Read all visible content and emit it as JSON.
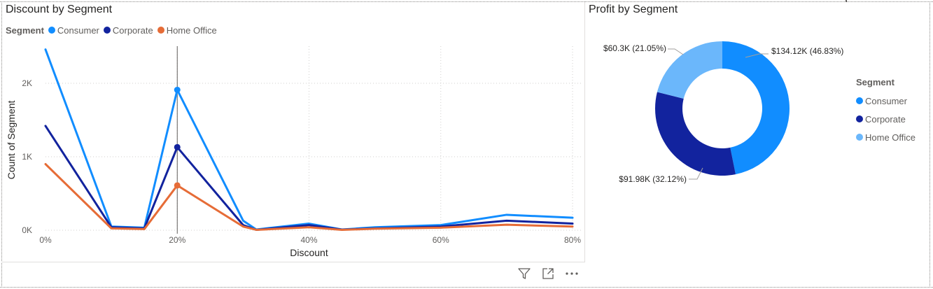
{
  "colors": {
    "consumer": "#118dff",
    "corporate": "#12239e",
    "home_office_line": "#e66c37",
    "home_office_donut": "#6bb7fb",
    "grid": "#d0cfce",
    "axis_text": "#605e5c",
    "crosshair": "#605e5c"
  },
  "toolbar": {
    "filter_icon": "filter-icon",
    "focus_icon": "focus-mode-icon",
    "more_icon": "more-options-icon"
  },
  "chart_data": [
    {
      "type": "line",
      "title": "Discount by Segment",
      "legend_title": "Segment",
      "legend_placement": "top-left",
      "xlabel": "Discount",
      "ylabel": "Count of Segment",
      "x_tick_labels": [
        "0%",
        "20%",
        "40%",
        "60%",
        "80%"
      ],
      "y_tick_labels": [
        "0K",
        "1K",
        "2K"
      ],
      "xlim": [
        0,
        0.8
      ],
      "ylim": [
        0,
        2400
      ],
      "grid": true,
      "highlight_x": 0.2,
      "x": [
        0,
        0.1,
        0.15,
        0.2,
        0.3,
        0.32,
        0.4,
        0.45,
        0.5,
        0.6,
        0.7,
        0.8
      ],
      "series": [
        {
          "name": "Consumer",
          "values": [
            2460,
            50,
            35,
            1910,
            130,
            10,
            90,
            10,
            40,
            70,
            210,
            170
          ]
        },
        {
          "name": "Corporate",
          "values": [
            1420,
            40,
            25,
            1130,
            70,
            5,
            70,
            8,
            25,
            50,
            130,
            90
          ]
        },
        {
          "name": "Home Office",
          "values": [
            900,
            25,
            15,
            610,
            50,
            5,
            40,
            5,
            20,
            35,
            75,
            50
          ]
        }
      ]
    },
    {
      "type": "pie",
      "title": "Profit by Segment",
      "legend_title": "Segment",
      "legend_placement": "right",
      "donut": true,
      "categories": [
        "Consumer",
        "Corporate",
        "Home Office"
      ],
      "values": [
        134.12,
        91.98,
        60.3
      ],
      "data_labels": [
        "$134.12K (46.83%)",
        "$91.98K (32.12%)",
        "$60.3K (21.05%)"
      ]
    }
  ]
}
